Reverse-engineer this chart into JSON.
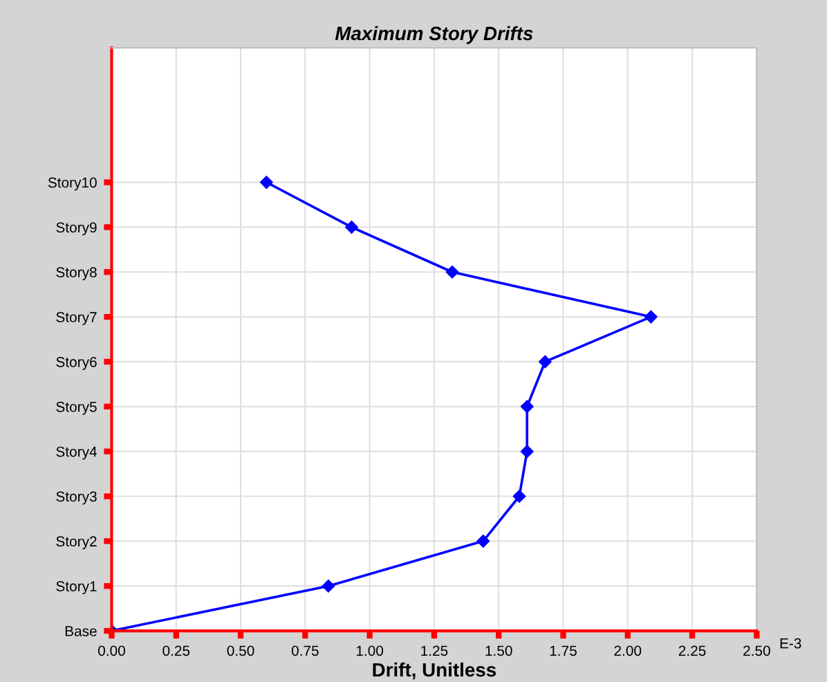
{
  "chart_data": {
    "type": "line",
    "orientation": "horizontal",
    "title": "Maximum Story Drifts",
    "xlabel": "Drift, Unitless",
    "categories": [
      "Story10",
      "Story9",
      "Story8",
      "Story7",
      "Story6",
      "Story5",
      "Story4",
      "Story3",
      "Story2",
      "Story1",
      "Base"
    ],
    "series": [
      {
        "color": "#0000ff",
        "values": [
          0.6,
          0.93,
          1.32,
          2.09,
          1.68,
          1.61,
          1.61,
          1.58,
          1.44,
          0.84,
          0
        ]
      }
    ],
    "xlim": [
      0,
      2.5
    ],
    "xticks": [
      {
        "value": 0,
        "label": "0.00"
      },
      {
        "value": 0.25,
        "label": "0.25"
      },
      {
        "value": 0.5,
        "label": "0.50"
      },
      {
        "value": 0.75,
        "label": "0.75"
      },
      {
        "value": 1,
        "label": "1.00"
      },
      {
        "value": 1.25,
        "label": "1.25"
      },
      {
        "value": 1.5,
        "label": "1.50"
      },
      {
        "value": 1.75,
        "label": "1.75"
      },
      {
        "value": 2,
        "label": "2.00"
      },
      {
        "value": 2.25,
        "label": "2.25"
      },
      {
        "value": 2.5,
        "label": "2.50"
      }
    ],
    "annotations": [
      "E-3"
    ],
    "grid": true,
    "marker": "diamond",
    "line_style": "solid"
  }
}
